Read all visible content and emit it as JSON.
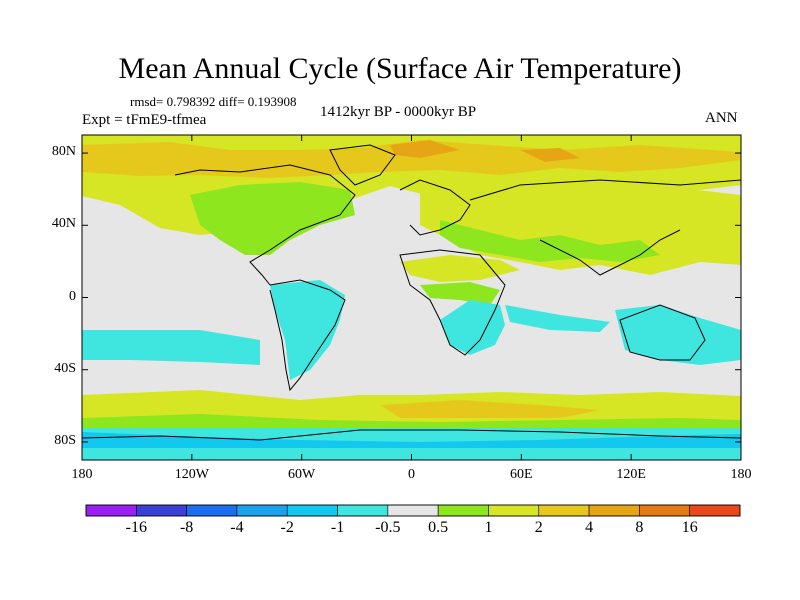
{
  "title": "Mean Annual Cycle (Surface Air Temperature)",
  "stats": "rmsd= 0.798392 diff= 0.193908",
  "experiment": "Expt = tFmE9-tfmea",
  "period": "1412kyr BP - 0000kyr BP",
  "season": "ANN",
  "map": {
    "projection": "cylindrical equidistant",
    "lon_range": [
      -180,
      180
    ],
    "lat_range": [
      -90,
      90
    ],
    "y_ticks": [
      {
        "label": "80N",
        "lat": 80
      },
      {
        "label": "40N",
        "lat": 40
      },
      {
        "label": "0",
        "lat": 0
      },
      {
        "label": "40S",
        "lat": -40
      },
      {
        "label": "80S",
        "lat": -80
      }
    ],
    "x_ticks": [
      {
        "label": "180",
        "lon": -180
      },
      {
        "label": "120W",
        "lon": -120
      },
      {
        "label": "60W",
        "lon": -60
      },
      {
        "label": "0",
        "lon": 0
      },
      {
        "label": "60E",
        "lon": 60
      },
      {
        "label": "120E",
        "lon": 120
      },
      {
        "label": "180",
        "lon": 180
      }
    ]
  },
  "colorbar": {
    "colors": [
      "#9a1ff2",
      "#3b3fd6",
      "#1c6ef0",
      "#1aa2ee",
      "#12c8ee",
      "#3fe6df",
      "#e6e6e6",
      "#8ee61e",
      "#d6e624",
      "#e6c81c",
      "#e6a514",
      "#e67a12",
      "#e8481a"
    ],
    "labels": [
      "-16",
      "-8",
      "-4",
      "-2",
      "-1",
      "-0.5",
      "0.5",
      "1",
      "2",
      "4",
      "8",
      "16"
    ]
  }
}
